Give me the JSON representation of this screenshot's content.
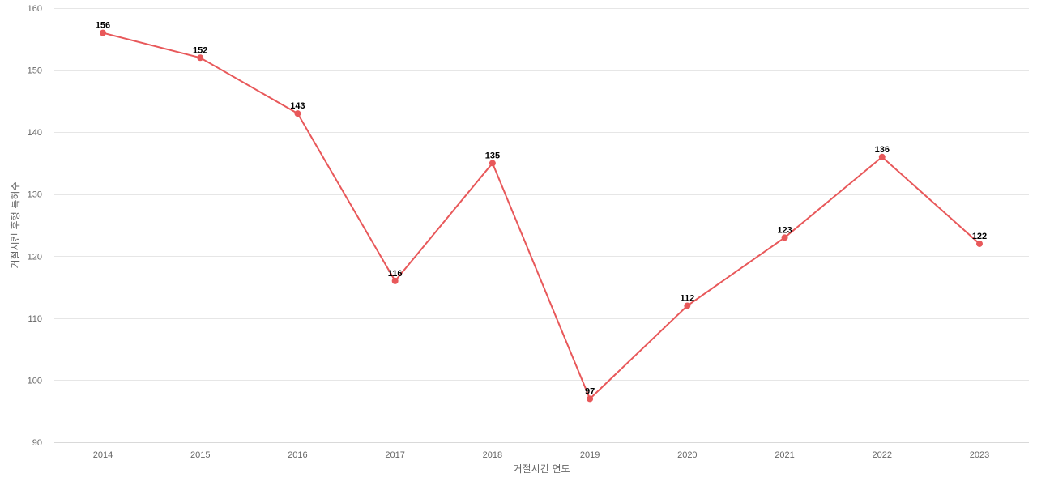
{
  "chart_data": {
    "type": "line",
    "title": "",
    "xlabel": "거절시킨 연도",
    "ylabel": "거절시킨 후행 특허수",
    "categories": [
      "2014",
      "2015",
      "2016",
      "2017",
      "2018",
      "2019",
      "2020",
      "2021",
      "2022",
      "2023"
    ],
    "series": [
      {
        "values": [
          156,
          152,
          143,
          116,
          135,
          97,
          112,
          123,
          136,
          122
        ],
        "color": "#e8585a"
      }
    ],
    "ylim": [
      90,
      160
    ],
    "yticks": [
      90,
      100,
      110,
      120,
      130,
      140,
      150,
      160
    ],
    "grid": true,
    "legend": "none",
    "data_labels": true
  }
}
